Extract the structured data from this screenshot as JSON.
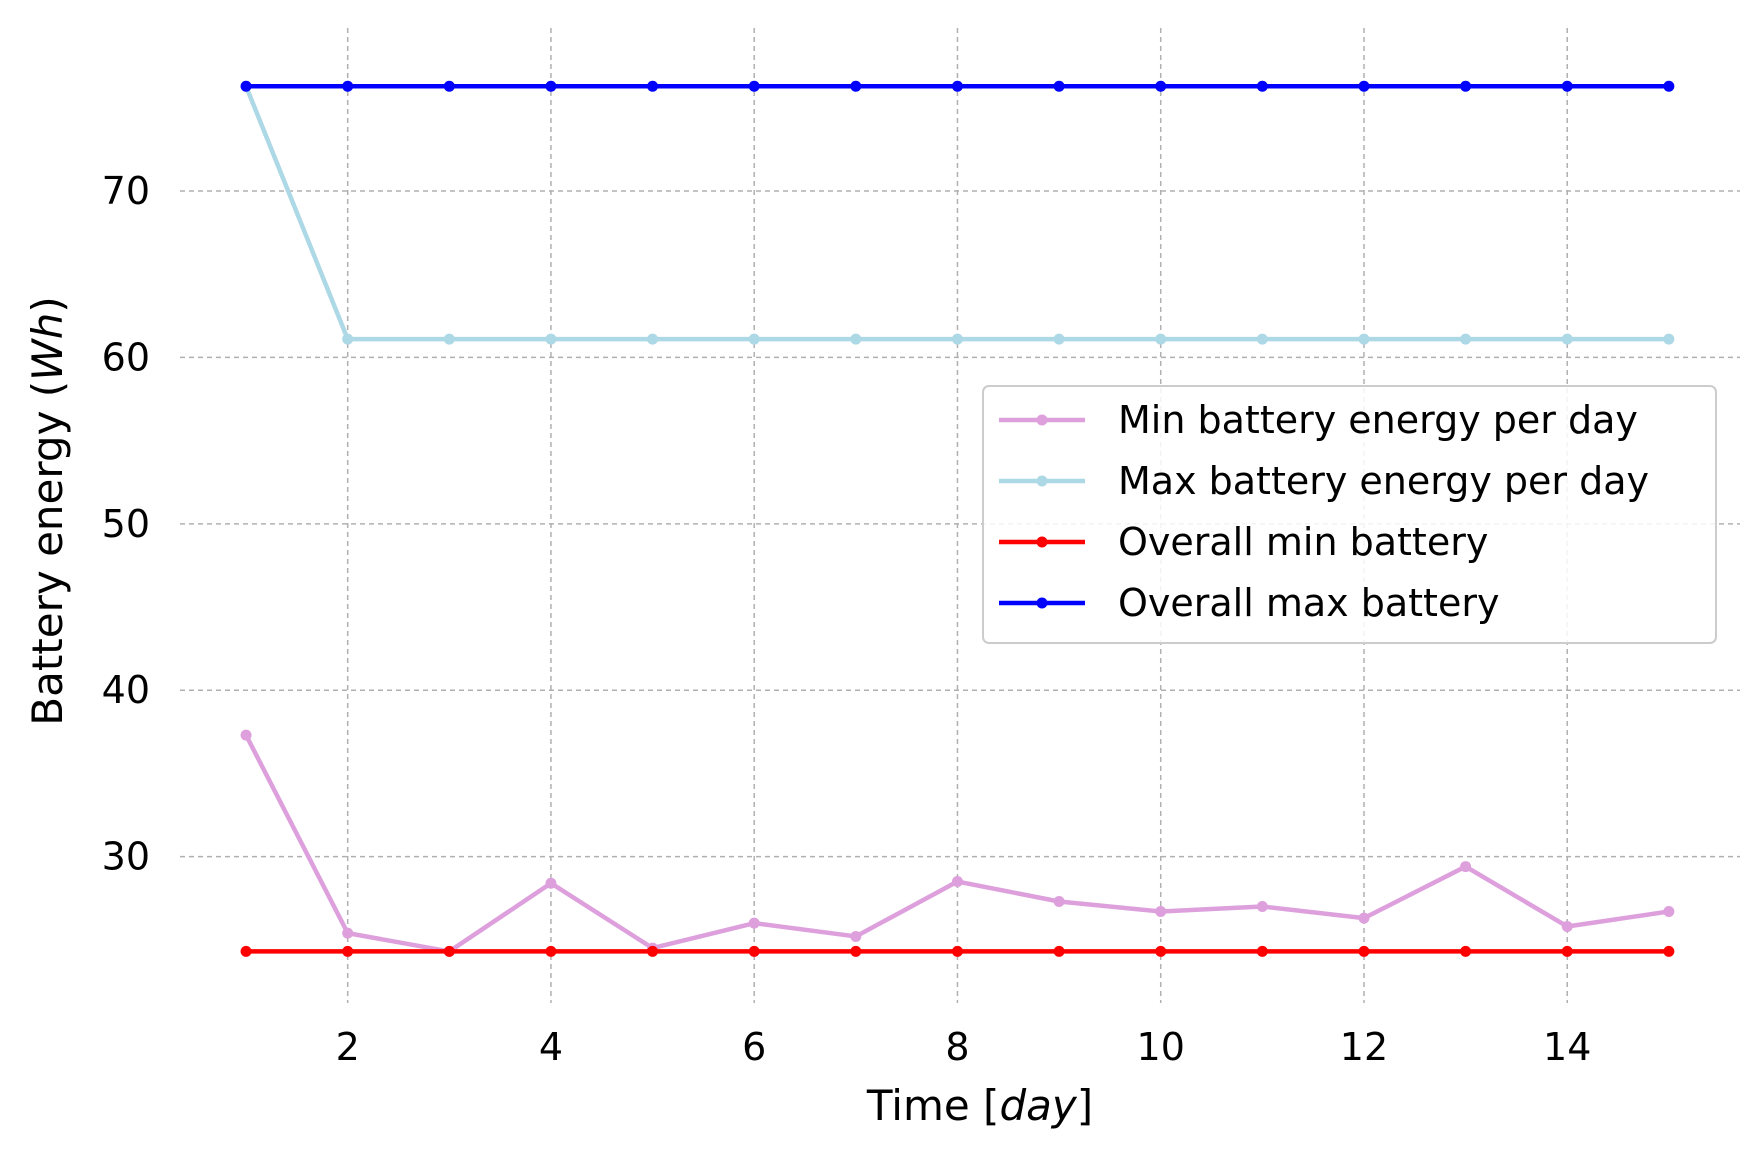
{
  "chart_data": {
    "type": "line",
    "title": "",
    "xlabel": {
      "prefix": "Time [",
      "italic": "day",
      "suffix": "]"
    },
    "ylabel": {
      "prefix": "Battery energy (",
      "italic": "Wh",
      "suffix": ")"
    },
    "xlim": [
      0.35,
      15.7
    ],
    "ylim": [
      21.2,
      79.8
    ],
    "xticks": [
      2,
      4,
      6,
      8,
      10,
      12,
      14
    ],
    "yticks": [
      30,
      40,
      50,
      60,
      70
    ],
    "grid": true,
    "legend_position": "center-right",
    "x": [
      1,
      2,
      3,
      4,
      5,
      6,
      7,
      8,
      9,
      10,
      11,
      12,
      13,
      14,
      15
    ],
    "series": [
      {
        "name": "Min battery energy per day",
        "color": "#dda0dd",
        "values": [
          37.3,
          25.4,
          24.3,
          28.4,
          24.5,
          26.0,
          25.2,
          28.5,
          27.3,
          26.7,
          27.0,
          26.3,
          29.4,
          25.8,
          26.7
        ]
      },
      {
        "name": "Max battery energy per day",
        "color": "#add8e6",
        "values": [
          76.3,
          61.1,
          61.1,
          61.1,
          61.1,
          61.1,
          61.1,
          61.1,
          61.1,
          61.1,
          61.1,
          61.1,
          61.1,
          61.1,
          61.1
        ]
      },
      {
        "name": "Overall min battery",
        "color": "#ff0000",
        "values": [
          24.3,
          24.3,
          24.3,
          24.3,
          24.3,
          24.3,
          24.3,
          24.3,
          24.3,
          24.3,
          24.3,
          24.3,
          24.3,
          24.3,
          24.3
        ]
      },
      {
        "name": "Overall max battery",
        "color": "#0000ff",
        "values": [
          76.3,
          76.3,
          76.3,
          76.3,
          76.3,
          76.3,
          76.3,
          76.3,
          76.3,
          76.3,
          76.3,
          76.3,
          76.3,
          76.3,
          76.3
        ]
      }
    ]
  }
}
